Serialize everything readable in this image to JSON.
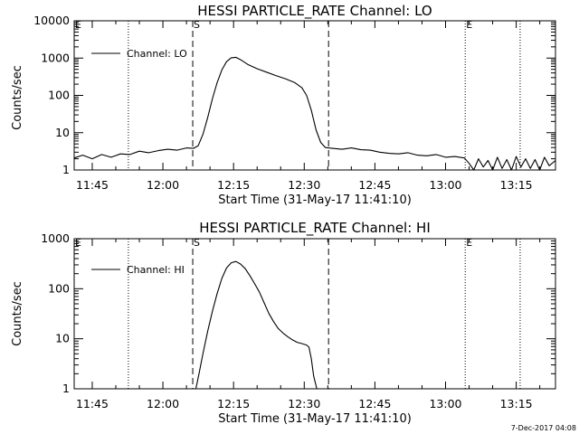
{
  "footer": {
    "date": "7-Dec-2017 04:08"
  },
  "chart_data": [
    {
      "type": "line",
      "title": "HESSI PARTICLE_RATE Channel: LO",
      "xlabel": "Start Time (31-May-17 11:41:10)",
      "ylabel": "Counts/sec",
      "yscale": "log",
      "ylim": [
        1,
        10000
      ],
      "xlim": [
        "11:41:10",
        "13:23:20"
      ],
      "y_tick_labels": [
        "1",
        "10",
        "100",
        "1000",
        "10000"
      ],
      "x_tick_labels": [
        "11:45",
        "12:00",
        "12:15",
        "12:30",
        "12:45",
        "13:00",
        "13:15"
      ],
      "legend": "top-left",
      "grid": false,
      "markers": [
        {
          "label": "E",
          "time": "11:41:10",
          "style": "dotted"
        },
        {
          "label": "",
          "time": "11:52:40",
          "style": "dotted"
        },
        {
          "label": "S",
          "time": "12:06:20",
          "style": "dashed"
        },
        {
          "label": "",
          "time": "12:35:10",
          "style": "dashed"
        },
        {
          "label": "E",
          "time": "13:04:10",
          "style": "dotted"
        },
        {
          "label": "",
          "time": "13:15:50",
          "style": "dotted"
        }
      ],
      "series": [
        {
          "name": "Channel: LO",
          "x": [
            "11:41:10",
            "11:43:00",
            "11:45:00",
            "11:47:00",
            "11:49:00",
            "11:51:00",
            "11:53:00",
            "11:55:00",
            "11:57:00",
            "11:59:00",
            "12:01:00",
            "12:03:00",
            "12:05:00",
            "12:06:30",
            "12:07:30",
            "12:08:30",
            "12:09:30",
            "12:10:30",
            "12:11:30",
            "12:12:30",
            "12:13:30",
            "12:14:30",
            "12:15:30",
            "12:16:30",
            "12:18:00",
            "12:20:00",
            "12:22:00",
            "12:24:00",
            "12:26:00",
            "12:28:00",
            "12:29:30",
            "12:30:30",
            "12:31:30",
            "12:32:30",
            "12:33:30",
            "12:34:30",
            "12:36:00",
            "12:38:00",
            "12:40:00",
            "12:42:00",
            "12:44:00",
            "12:46:00",
            "12:48:00",
            "12:50:00",
            "12:52:00",
            "12:54:00",
            "12:56:00",
            "12:58:00",
            "13:00:00",
            "13:02:00",
            "13:04:00",
            "13:05:00",
            "13:06:00",
            "13:07:00",
            "13:08:00",
            "13:09:00",
            "13:10:00",
            "13:11:00",
            "13:12:00",
            "13:13:00",
            "13:14:00",
            "13:15:00",
            "13:16:00",
            "13:17:00",
            "13:18:00",
            "13:19:00",
            "13:20:00",
            "13:21:00",
            "13:22:00",
            "13:23:20"
          ],
          "y": [
            2.1,
            2.5,
            2.0,
            2.6,
            2.2,
            2.7,
            2.6,
            3.2,
            2.9,
            3.3,
            3.6,
            3.4,
            3.9,
            3.8,
            4.5,
            9,
            25,
            80,
            220,
            480,
            800,
            1020,
            1050,
            900,
            680,
            520,
            420,
            340,
            280,
            220,
            160,
            100,
            40,
            12,
            5.5,
            4.0,
            3.8,
            3.6,
            3.9,
            3.5,
            3.4,
            3.0,
            2.8,
            2.7,
            2.9,
            2.5,
            2.4,
            2.6,
            2.2,
            2.3,
            2.1,
            1.5,
            1.0,
            2.0,
            1.2,
            1.8,
            1.0,
            2.2,
            1.1,
            1.9,
            1.0,
            2.3,
            1.2,
            2.0,
            1.1,
            1.9,
            1.0,
            2.2,
            1.3,
            1.8
          ]
        }
      ]
    },
    {
      "type": "line",
      "title": "HESSI PARTICLE_RATE Channel: HI",
      "xlabel": "Start Time (31-May-17 11:41:10)",
      "ylabel": "Counts/sec",
      "yscale": "log",
      "ylim": [
        1,
        1000
      ],
      "xlim": [
        "11:41:10",
        "13:23:20"
      ],
      "y_tick_labels": [
        "1",
        "10",
        "100",
        "1000"
      ],
      "x_tick_labels": [
        "11:45",
        "12:00",
        "12:15",
        "12:30",
        "12:45",
        "13:00",
        "13:15"
      ],
      "legend": "top-left",
      "grid": false,
      "markers": [
        {
          "label": "E",
          "time": "11:41:10",
          "style": "dotted"
        },
        {
          "label": "",
          "time": "11:52:40",
          "style": "dotted"
        },
        {
          "label": "S",
          "time": "12:06:20",
          "style": "dashed"
        },
        {
          "label": "",
          "time": "12:35:10",
          "style": "dashed"
        },
        {
          "label": "E",
          "time": "13:04:10",
          "style": "dotted"
        },
        {
          "label": "",
          "time": "13:15:50",
          "style": "dotted"
        }
      ],
      "series": [
        {
          "name": "Channel: HI",
          "x": [
            "12:07:00",
            "12:07:40",
            "12:08:30",
            "12:09:30",
            "12:10:30",
            "12:11:30",
            "12:12:30",
            "12:13:30",
            "12:14:30",
            "12:15:30",
            "12:16:30",
            "12:17:30",
            "12:18:30",
            "12:19:30",
            "12:20:30",
            "12:21:30",
            "12:22:30",
            "12:23:30",
            "12:24:30",
            "12:25:30",
            "12:26:30",
            "12:27:30",
            "12:28:30",
            "12:29:30",
            "12:30:30",
            "12:31:00",
            "12:31:30",
            "12:32:00",
            "12:32:40"
          ],
          "y": [
            1.0,
            2.0,
            5,
            14,
            35,
            80,
            160,
            260,
            330,
            350,
            310,
            250,
            180,
            125,
            85,
            52,
            32,
            22,
            16,
            13,
            11,
            9.5,
            8.5,
            8.0,
            7.5,
            6.8,
            4.0,
            1.8,
            1.0
          ]
        }
      ]
    }
  ]
}
